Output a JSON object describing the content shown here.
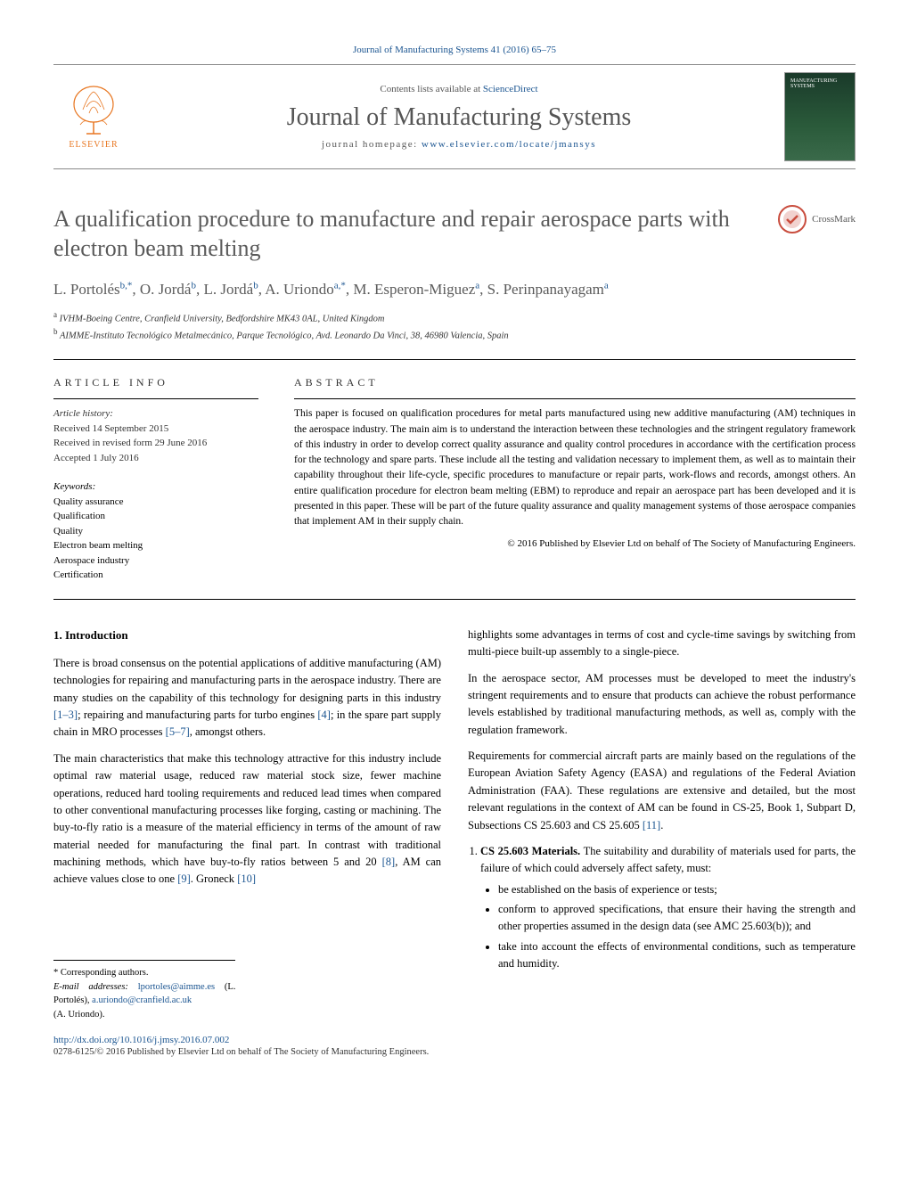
{
  "journal_ref": {
    "text": "Journal of Manufacturing Systems 41 (2016) 65–75",
    "link_text": "Journal of Manufacturing Systems 41 (2016) 65–75"
  },
  "header": {
    "contents_prefix": "Contents lists available at ",
    "contents_link": "ScienceDirect",
    "journal_name": "Journal of Manufacturing Systems",
    "homepage_prefix": "journal homepage: ",
    "homepage_link": "www.elsevier.com/locate/jmansys",
    "elsevier_label": "ELSEVIER",
    "cover_label": "MANUFACTURING SYSTEMS"
  },
  "crossmark": {
    "label": "CrossMark"
  },
  "title": "A qualification procedure to manufacture and repair aerospace parts with electron beam melting",
  "authors_html": "L. Portolés<span class='sup'>b,*</span>, O. Jordá<span class='sup'>b</span>, L. Jordá<span class='sup'>b</span>, A. Uriondo<span class='sup'>a,*</span>, M. Esperon-Miguez<span class='sup'>a</span>, S. Perinpanayagam<span class='sup'>a</span>",
  "affiliations": [
    {
      "sup": "a",
      "text": "IVHM-Boeing Centre, Cranfield University, Bedfordshire MK43 0AL, United Kingdom"
    },
    {
      "sup": "b",
      "text": "AIMME-Instituto Tecnológico Metalmecánico, Parque Tecnológico, Avd. Leonardo Da Vinci, 38, 46980 Valencia, Spain"
    }
  ],
  "article_info": {
    "header": "article info",
    "history_label": "Article history:",
    "received": "Received 14 September 2015",
    "revised": "Received in revised form 29 June 2016",
    "accepted": "Accepted 1 July 2016",
    "keywords_label": "Keywords:",
    "keywords": [
      "Quality assurance",
      "Qualification",
      "Quality",
      "Electron beam melting",
      "Aerospace industry",
      "Certification"
    ]
  },
  "abstract": {
    "header": "abstract",
    "text": "This paper is focused on qualification procedures for metal parts manufactured using new additive manufacturing (AM) techniques in the aerospace industry. The main aim is to understand the interaction between these technologies and the stringent regulatory framework of this industry in order to develop correct quality assurance and quality control procedures in accordance with the certification process for the technology and spare parts. These include all the testing and validation necessary to implement them, as well as to maintain their capability throughout their life-cycle, specific procedures to manufacture or repair parts, work-flows and records, amongst others. An entire qualification procedure for electron beam melting (EBM) to reproduce and repair an aerospace part has been developed and it is presented in this paper. These will be part of the future quality assurance and quality management systems of those aerospace companies that implement AM in their supply chain.",
    "copyright": "© 2016 Published by Elsevier Ltd on behalf of The Society of Manufacturing Engineers."
  },
  "body": {
    "intro_heading": "1. Introduction",
    "p1_pre": "There is broad consensus on the potential applications of additive manufacturing (AM) technologies for repairing and manufacturing parts in the aerospace industry. There are many studies on the capability of this technology for designing parts in this industry ",
    "r1": "[1–3]",
    "p1_mid1": "; repairing and manufacturing parts for turbo engines ",
    "r2": "[4]",
    "p1_mid2": "; in the spare part supply chain in MRO processes ",
    "r3": "[5–7]",
    "p1_post": ", amongst others.",
    "p2_pre": "The main characteristics that make this technology attractive for this industry include optimal raw material usage, reduced raw material stock size, fewer machine operations, reduced hard tooling requirements and reduced lead times when compared to other conventional manufacturing processes like forging, casting or machining. The buy-to-fly ratio is a measure of the material efficiency in terms of the amount of raw material needed for manufacturing the final part. In contrast with traditional machining methods, which have buy-to-fly ratios between 5 and 20 ",
    "r4": "[8]",
    "p2_mid1": ", AM can achieve values close to one ",
    "r5": "[9]",
    "p2_mid2": ". Groneck ",
    "r6": "[10]",
    "p3": "highlights some advantages in terms of cost and cycle-time savings by switching from multi-piece built-up assembly to a single-piece.",
    "p4": "In the aerospace sector, AM processes must be developed to meet the industry's stringent requirements and to ensure that products can achieve the robust performance levels established by traditional manufacturing methods, as well as, comply with the regulation framework.",
    "p5_pre": "Requirements for commercial aircraft parts are mainly based on the regulations of the European Aviation Safety Agency (EASA) and regulations of the Federal Aviation Administration (FAA). These regulations are extensive and detailed, but the most relevant regulations in the context of AM can be found in CS-25, Book 1, Subpart D, Subsections CS 25.603 and CS 25.605 ",
    "r7": "[11]",
    "p5_post": ".",
    "reg1_title": "CS 25.603 Materials.",
    "reg1_text": " The suitability and durability of materials used for parts, the failure of which could adversely affect safety, must:",
    "reg1_items": [
      "be established on the basis of experience or tests;",
      "conform to approved specifications, that ensure their having the strength and other properties assumed in the design data (see AMC 25.603(b)); and",
      "take into account the effects of environmental conditions, such as temperature and humidity."
    ]
  },
  "footnotes": {
    "corr": "* Corresponding authors.",
    "email_label": "E-mail addresses: ",
    "email1": "lportoles@aimme.es",
    "email1_aff": " (L. Portolés), ",
    "email2": "a.uriondo@cranfield.ac.uk",
    "email2_aff": " (A. Uriondo)."
  },
  "doi": {
    "link": "http://dx.doi.org/10.1016/j.jmsy.2016.07.002",
    "footer": "0278-6125/© 2016 Published by Elsevier Ltd on behalf of The Society of Manufacturing Engineers."
  },
  "colors": {
    "link": "#1a5490",
    "elsevier_orange": "#e87722",
    "title_gray": "#5a5a5a"
  }
}
